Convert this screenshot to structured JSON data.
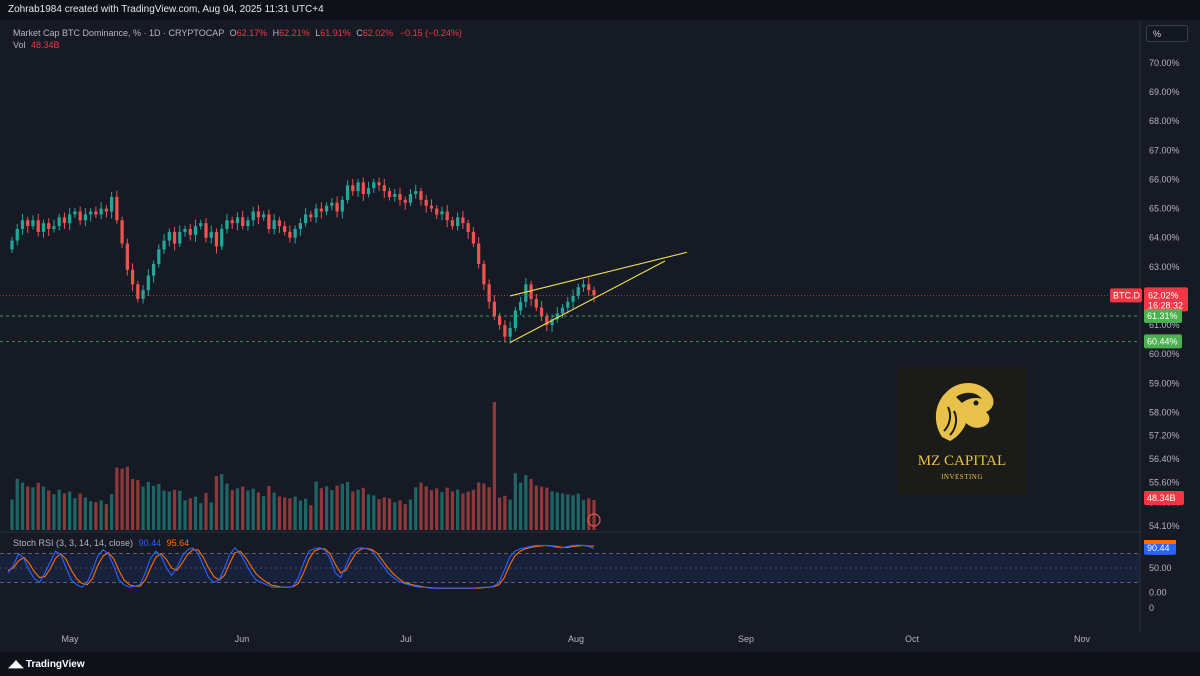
{
  "header": {
    "credit": "Zohrab1984 created with TradingView.com, Aug 04, 2025 11:31 UTC+4"
  },
  "legend": {
    "title": "Market Cap BTC Dominance, % · 1D · CRYPTOCAP",
    "open_key": "O",
    "open": "62.17%",
    "high_key": "H",
    "high": "62.21%",
    "low_key": "L",
    "low": "61.91%",
    "close_key": "C",
    "close": "62.02%",
    "change": "−0.15 (−0.24%)",
    "vol_label": "Vol",
    "vol_value": "48.34B"
  },
  "unit_button": "%",
  "footer": {
    "brand": "TradingView"
  },
  "watermark": {
    "name": "MZ CAPITAL",
    "sub": "INVESTING"
  },
  "colors": {
    "up": "#26a69a",
    "down": "#ef5350",
    "background": "#161a25",
    "wedge": "#f0e04a",
    "rsi_k": "#2962ff",
    "rsi_d": "#ff6d00",
    "brand_gold": "#e8c14a"
  },
  "chart_data": [
    {
      "type": "candlestick",
      "title": "Market Cap BTC Dominance, % · 1D · CRYPTOCAP",
      "y_unit": "%",
      "ylim": [
        53.8,
        70.8
      ],
      "y_ticks": [
        "70.00%",
        "69.00%",
        "68.00%",
        "67.00%",
        "66.00%",
        "65.00%",
        "64.00%",
        "63.00%",
        "62.00%",
        "61.00%",
        "60.00%",
        "59.00%",
        "58.00%",
        "57.20%",
        "56.40%",
        "55.60%",
        "54.90%",
        "54.10%"
      ],
      "x_ticks": [
        "May",
        "Jun",
        "Jul",
        "Aug",
        "Sep",
        "Oct",
        "Nov"
      ],
      "price_labels": [
        {
          "text": "BTC.D",
          "value": 62.02,
          "color": "#f23645",
          "style": "tag"
        },
        {
          "text": "62.02%",
          "value": 62.02,
          "color": "#f23645",
          "countdown": "16:28:32"
        },
        {
          "text": "61.31%",
          "value": 61.31,
          "color": "#4caf50"
        },
        {
          "text": "60.44%",
          "value": 60.44,
          "color": "#4caf50"
        }
      ],
      "close_series": [
        63.9,
        64.3,
        64.6,
        64.4,
        64.6,
        64.2,
        64.5,
        64.3,
        64.4,
        64.7,
        64.5,
        64.8,
        64.9,
        64.6,
        64.8,
        64.9,
        64.8,
        65.0,
        64.9,
        65.4,
        64.6,
        63.8,
        62.9,
        62.4,
        61.9,
        62.2,
        62.7,
        63.1,
        63.6,
        63.9,
        64.2,
        63.8,
        64.2,
        64.3,
        64.1,
        64.4,
        64.5,
        64.0,
        64.2,
        63.7,
        64.3,
        64.6,
        64.5,
        64.7,
        64.4,
        64.6,
        64.9,
        64.7,
        64.8,
        64.3,
        64.6,
        64.4,
        64.2,
        64.0,
        64.3,
        64.5,
        64.8,
        64.7,
        65.0,
        64.9,
        65.1,
        65.2,
        64.9,
        65.3,
        65.8,
        65.6,
        65.9,
        65.5,
        65.7,
        65.9,
        65.8,
        65.6,
        65.4,
        65.5,
        65.3,
        65.2,
        65.5,
        65.6,
        65.3,
        65.1,
        65.0,
        64.8,
        64.9,
        64.6,
        64.4,
        64.7,
        64.5,
        64.2,
        63.8,
        63.1,
        62.4,
        61.8,
        61.3,
        61.0,
        60.6,
        60.9,
        61.5,
        61.8,
        62.4,
        61.9,
        61.6,
        61.3,
        61.0,
        61.2,
        61.4,
        61.6,
        61.8,
        62.0,
        62.3,
        62.4,
        62.2,
        62.02
      ],
      "volume_note": "Volume shown as histogram in the lower part of the main pane; last value 48.34B",
      "pattern": {
        "type": "rising wedge",
        "color": "#f0e04a"
      }
    },
    {
      "type": "line",
      "title": "Stoch RSI (3, 3, 14, 14, close)",
      "name_text": "Stoch RSI (3, 3, 14, 14, close)",
      "series": [
        {
          "name": "K",
          "value_label": "90.44",
          "color": "#2962ff"
        },
        {
          "name": "D",
          "value_label": "95.64",
          "color": "#ff6d00"
        }
      ],
      "y_ticks": [
        "50.00",
        "0.00",
        "0"
      ],
      "last_label": "90.44",
      "bands": [
        80,
        20
      ],
      "k_values": [
        40,
        55,
        80,
        70,
        45,
        28,
        20,
        40,
        62,
        85,
        78,
        50,
        25,
        15,
        10,
        20,
        45,
        75,
        88,
        80,
        55,
        25,
        15,
        10,
        12,
        15,
        40,
        70,
        85,
        75,
        50,
        35,
        50,
        75,
        88,
        92,
        80,
        55,
        30,
        20,
        25,
        50,
        78,
        92,
        80,
        60,
        40,
        25,
        20,
        15,
        10,
        10,
        10,
        10,
        12,
        30,
        60,
        85,
        90,
        92,
        88,
        70,
        40,
        30,
        55,
        80,
        90,
        92,
        90,
        85,
        70,
        55,
        40,
        30,
        22,
        18,
        15,
        12,
        10,
        10,
        8,
        8,
        8,
        8,
        8,
        8,
        8,
        8,
        8,
        9,
        10,
        10,
        12,
        20,
        45,
        72,
        85,
        90,
        92,
        95,
        97,
        97,
        97,
        95,
        93,
        92,
        95,
        97,
        98,
        97,
        95,
        90.44
      ],
      "d_values": [
        45,
        50,
        65,
        72,
        60,
        42,
        30,
        32,
        48,
        70,
        80,
        68,
        45,
        28,
        18,
        15,
        28,
        55,
        75,
        82,
        70,
        45,
        25,
        15,
        12,
        12,
        25,
        50,
        72,
        80,
        68,
        50,
        45,
        60,
        78,
        88,
        88,
        72,
        50,
        32,
        25,
        35,
        60,
        82,
        85,
        72,
        55,
        38,
        28,
        20,
        14,
        12,
        10,
        10,
        11,
        18,
        40,
        68,
        85,
        90,
        90,
        80,
        58,
        40,
        45,
        65,
        82,
        90,
        91,
        88,
        80,
        65,
        50,
        38,
        28,
        20,
        17,
        14,
        12,
        10,
        9,
        8,
        8,
        8,
        8,
        8,
        8,
        8,
        8,
        8,
        9,
        10,
        11,
        15,
        30,
        55,
        75,
        85,
        90,
        93,
        95,
        96,
        97,
        96,
        95,
        93,
        93,
        95,
        96,
        97,
        96,
        95.64
      ]
    }
  ]
}
